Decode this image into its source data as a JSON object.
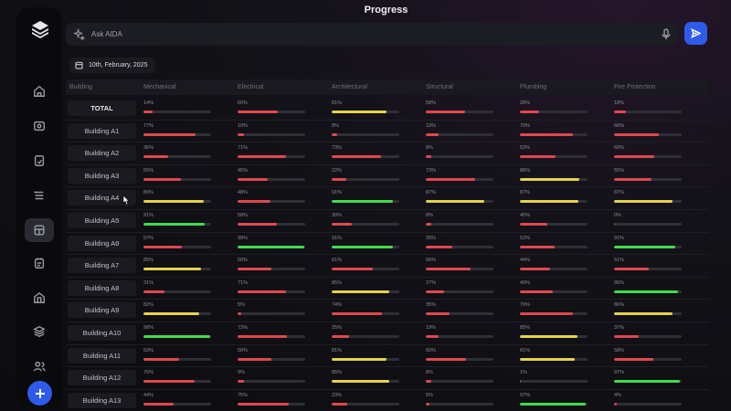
{
  "header": {
    "title": "Progress"
  },
  "ask": {
    "placeholder": "Ask AIDA"
  },
  "date": {
    "label": "10th, February, 2025"
  },
  "sidebar": {
    "icons": [
      "home-icon",
      "inbox-icon",
      "document-icon",
      "list-icon",
      "layout-icon",
      "calendar-icon",
      "building-icon",
      "layers-icon",
      "users-icon"
    ],
    "active": "layout-icon"
  },
  "colors": {
    "red": "#e0484e",
    "yellow": "#e6d34a",
    "green": "#3fdc4f",
    "accent": "#2f5bea"
  },
  "table": {
    "columns": [
      "Building",
      "Mechanical",
      "Electrical",
      "Architectural",
      "Structural",
      "Plumbing",
      "Fire Protection"
    ],
    "rows": [
      {
        "label": "TOTAL",
        "cells": [
          {
            "v": "14%",
            "c": "red"
          },
          {
            "v": "60%",
            "c": "red"
          },
          {
            "v": "81%",
            "c": "yellow"
          },
          {
            "v": "58%",
            "c": "red"
          },
          {
            "v": "28%",
            "c": "red"
          },
          {
            "v": "18%",
            "c": "red"
          }
        ]
      },
      {
        "label": "Building A1",
        "cells": [
          {
            "v": "77%",
            "c": "red"
          },
          {
            "v": "10%",
            "c": "red"
          },
          {
            "v": "8%",
            "c": "red"
          },
          {
            "v": "19%",
            "c": "red"
          },
          {
            "v": "79%",
            "c": "red"
          },
          {
            "v": "66%",
            "c": "red"
          }
        ]
      },
      {
        "label": "Building A2",
        "cells": [
          {
            "v": "36%",
            "c": "red"
          },
          {
            "v": "71%",
            "c": "red"
          },
          {
            "v": "73%",
            "c": "red"
          },
          {
            "v": "8%",
            "c": "red"
          },
          {
            "v": "53%",
            "c": "red"
          },
          {
            "v": "60%",
            "c": "red"
          }
        ]
      },
      {
        "label": "Building A3",
        "cells": [
          {
            "v": "55%",
            "c": "red"
          },
          {
            "v": "45%",
            "c": "red"
          },
          {
            "v": "22%",
            "c": "red"
          },
          {
            "v": "73%",
            "c": "red"
          },
          {
            "v": "88%",
            "c": "yellow"
          },
          {
            "v": "55%",
            "c": "red"
          }
        ]
      },
      {
        "label": "Building A4",
        "cells": [
          {
            "v": "89%",
            "c": "yellow"
          },
          {
            "v": "48%",
            "c": "red"
          },
          {
            "v": "91%",
            "c": "green"
          },
          {
            "v": "87%",
            "c": "yellow"
          },
          {
            "v": "87%",
            "c": "yellow"
          },
          {
            "v": "87%",
            "c": "yellow"
          }
        ]
      },
      {
        "label": "Building A5",
        "cells": [
          {
            "v": "91%",
            "c": "green"
          },
          {
            "v": "58%",
            "c": "red"
          },
          {
            "v": "30%",
            "c": "red"
          },
          {
            "v": "8%",
            "c": "red"
          },
          {
            "v": "40%",
            "c": "red"
          },
          {
            "v": "0%",
            "c": "red"
          }
        ]
      },
      {
        "label": "Building A6",
        "cells": [
          {
            "v": "57%",
            "c": "red"
          },
          {
            "v": "99%",
            "c": "green"
          },
          {
            "v": "91%",
            "c": "green"
          },
          {
            "v": "39%",
            "c": "red"
          },
          {
            "v": "52%",
            "c": "red"
          },
          {
            "v": "91%",
            "c": "green"
          }
        ]
      },
      {
        "label": "Building A7",
        "cells": [
          {
            "v": "85%",
            "c": "yellow"
          },
          {
            "v": "50%",
            "c": "red"
          },
          {
            "v": "61%",
            "c": "red"
          },
          {
            "v": "66%",
            "c": "red"
          },
          {
            "v": "44%",
            "c": "red"
          },
          {
            "v": "51%",
            "c": "red"
          }
        ]
      },
      {
        "label": "Building A8",
        "cells": [
          {
            "v": "31%",
            "c": "red"
          },
          {
            "v": "71%",
            "c": "red"
          },
          {
            "v": "85%",
            "c": "yellow"
          },
          {
            "v": "27%",
            "c": "red"
          },
          {
            "v": "49%",
            "c": "red"
          },
          {
            "v": "95%",
            "c": "green"
          }
        ]
      },
      {
        "label": "Building A9",
        "cells": [
          {
            "v": "82%",
            "c": "yellow"
          },
          {
            "v": "5%",
            "c": "red"
          },
          {
            "v": "74%",
            "c": "red"
          },
          {
            "v": "35%",
            "c": "red"
          },
          {
            "v": "79%",
            "c": "red"
          },
          {
            "v": "86%",
            "c": "yellow"
          }
        ]
      },
      {
        "label": "Building A10",
        "cells": [
          {
            "v": "98%",
            "c": "green"
          },
          {
            "v": "73%",
            "c": "red"
          },
          {
            "v": "25%",
            "c": "red"
          },
          {
            "v": "19%",
            "c": "red"
          },
          {
            "v": "85%",
            "c": "yellow"
          },
          {
            "v": "37%",
            "c": "red"
          }
        ]
      },
      {
        "label": "Building A11",
        "cells": [
          {
            "v": "53%",
            "c": "red"
          },
          {
            "v": "50%",
            "c": "red"
          },
          {
            "v": "81%",
            "c": "yellow"
          },
          {
            "v": "60%",
            "c": "red"
          },
          {
            "v": "81%",
            "c": "yellow"
          },
          {
            "v": "58%",
            "c": "red"
          }
        ]
      },
      {
        "label": "Building A12",
        "cells": [
          {
            "v": "76%",
            "c": "red"
          },
          {
            "v": "9%",
            "c": "red"
          },
          {
            "v": "85%",
            "c": "yellow"
          },
          {
            "v": "8%",
            "c": "red"
          },
          {
            "v": "1%",
            "c": "red"
          },
          {
            "v": "97%",
            "c": "green"
          }
        ]
      },
      {
        "label": "Building A13",
        "cells": [
          {
            "v": "44%",
            "c": "red"
          },
          {
            "v": "75%",
            "c": "red"
          },
          {
            "v": "23%",
            "c": "red"
          },
          {
            "v": "5%",
            "c": "red"
          },
          {
            "v": "97%",
            "c": "green"
          },
          {
            "v": "4%",
            "c": "red"
          }
        ]
      }
    ]
  }
}
